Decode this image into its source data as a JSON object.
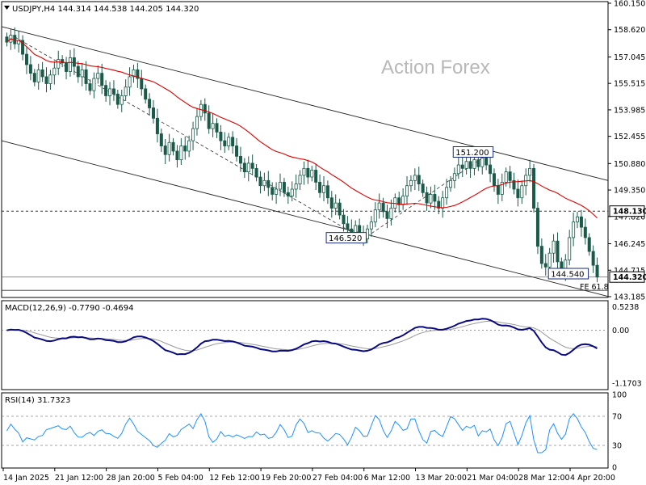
{
  "watermark": "Action Forex",
  "chart_data": {
    "type": "candlestick",
    "price_panel": {
      "header": "USDJPY,H4  144.314 144.538 144.205 144.320",
      "ylim": [
        143.185,
        160.15
      ],
      "yticks": [
        "160.150",
        "158.620",
        "157.045",
        "155.515",
        "153.985",
        "152.455",
        "150.880",
        "149.350",
        "147.820",
        "146.245",
        "144.715",
        "143.185"
      ],
      "current_price": "144.320",
      "level_line": "148.130",
      "sma_color": "#e00000",
      "candle_color": "#1a5a48",
      "closes": [
        157.9,
        158.3,
        157.8,
        158.0,
        157.2,
        156.6,
        156.1,
        155.6,
        156.3,
        155.9,
        155.5,
        156.0,
        156.4,
        156.9,
        156.7,
        156.2,
        157.0,
        156.5,
        155.9,
        156.3,
        155.5,
        155.1,
        155.8,
        156.1,
        155.4,
        154.8,
        155.2,
        154.9,
        154.3,
        154.8,
        155.3,
        155.9,
        156.3,
        155.8,
        155.2,
        154.6,
        154.1,
        153.5,
        152.6,
        151.9,
        151.4,
        152.1,
        151.6,
        151.1,
        151.9,
        151.6,
        152.2,
        152.9,
        153.6,
        154.3,
        153.8,
        152.9,
        153.2,
        152.7,
        152.2,
        151.9,
        152.4,
        151.9,
        151.3,
        150.9,
        150.4,
        150.9,
        150.6,
        150.1,
        149.6,
        149.9,
        149.5,
        149.1,
        149.4,
        149.8,
        149.2,
        149.0,
        149.4,
        149.7,
        150.2,
        150.6,
        150.1,
        150.5,
        149.8,
        149.2,
        149.6,
        148.9,
        148.3,
        148.6,
        147.9,
        147.4,
        147.1,
        146.9,
        147.3,
        146.8,
        146.52,
        147.1,
        147.5,
        148.2,
        148.6,
        148.1,
        147.7,
        148.3,
        148.9,
        148.5,
        149.0,
        149.6,
        149.9,
        150.2,
        149.7,
        149.2,
        148.6,
        149.1,
        148.7,
        148.3,
        148.9,
        149.5,
        149.9,
        150.3,
        150.8,
        150.6,
        151.0,
        150.6,
        151.1,
        150.7,
        151.2,
        150.8,
        150.3,
        149.6,
        149.1,
        149.8,
        150.4,
        149.9,
        149.4,
        148.9,
        149.6,
        150.2,
        150.6,
        148.3,
        146.1,
        145.1,
        144.9,
        145.7,
        146.4,
        145.2,
        144.54,
        145.3,
        146.6,
        147.5,
        147.8,
        147.2,
        146.6,
        145.8,
        145.0,
        144.32
      ],
      "sma_period": 30,
      "annotations": [
        {
          "label": "151.200",
          "index": 120,
          "value": 151.2
        },
        {
          "label": "146.520",
          "index": 90,
          "value": 146.52
        },
        {
          "label": "144.540",
          "index": 142,
          "value": 144.54
        },
        {
          "label": "FE 61.8",
          "index": 154,
          "value": 143.55
        }
      ]
    },
    "macd_panel": {
      "header": "MACD(12,26,9) -0.7790 -0.4694",
      "ylim": [
        -1.3,
        0.62
      ],
      "ticks": [
        "0.5238",
        "0.00",
        "-1.1703"
      ],
      "current_value": "0.00"
    },
    "rsi_panel": {
      "header": "RSI(14) 31.7323",
      "ylim": [
        0,
        100
      ],
      "ticks": [
        "100",
        "70",
        "30",
        "0"
      ],
      "levels": [
        70,
        30
      ],
      "line_color": "#1e90ff"
    },
    "x_labels": [
      "14 Jan 2025",
      "21 Jan 12:00",
      "28 Jan 20:00",
      "5 Feb 04:00",
      "12 Feb 12:00",
      "19 Feb 20:00",
      "27 Feb 04:00",
      "6 Mar 12:00",
      "13 Mar 20:00",
      "21 Mar 04:00",
      "28 Mar 12:00",
      "4 Apr 20:00"
    ]
  }
}
